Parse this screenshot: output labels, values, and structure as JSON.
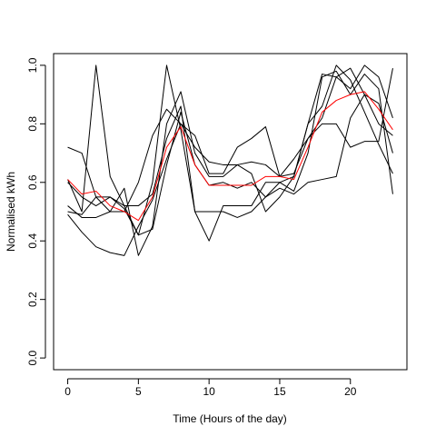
{
  "chart_data": {
    "type": "line",
    "title": "",
    "xlabel": "Time (Hours of the day)",
    "ylabel": "Normalised kWh",
    "xlim": [
      -1,
      24
    ],
    "ylim": [
      -0.04,
      1.04
    ],
    "x_ticks": [
      0,
      5,
      10,
      15,
      20
    ],
    "y_ticks": [
      0.0,
      0.2,
      0.4,
      0.6,
      0.8,
      1.0
    ],
    "x_tick_labels": [
      "0",
      "5",
      "10",
      "15",
      "20"
    ],
    "y_tick_labels": [
      "0.0",
      "0.2",
      "0.4",
      "0.6",
      "0.8",
      "1.0"
    ],
    "grid": false,
    "x": [
      0,
      1,
      2,
      3,
      4,
      5,
      6,
      7,
      8,
      9,
      10,
      11,
      12,
      13,
      14,
      15,
      16,
      17,
      18,
      19,
      20,
      21,
      22,
      23
    ],
    "series": [
      {
        "color": "#000000",
        "values": [
          0.61,
          0.5,
          1.0,
          0.62,
          0.52,
          0.52,
          0.56,
          0.75,
          0.86,
          0.5,
          0.4,
          0.52,
          0.52,
          0.52,
          0.6,
          0.6,
          0.57,
          0.7,
          0.96,
          0.98,
          0.9,
          0.97,
          0.92,
          0.56
        ]
      },
      {
        "color": "#000000",
        "values": [
          0.72,
          0.7,
          0.55,
          0.55,
          0.52,
          0.42,
          0.6,
          1.0,
          0.78,
          0.5,
          0.5,
          0.5,
          0.48,
          0.5,
          0.55,
          0.6,
          0.62,
          0.8,
          0.97,
          0.96,
          0.99,
          0.9,
          0.87,
          0.7
        ]
      },
      {
        "color": "#000000",
        "values": [
          0.5,
          0.49,
          0.55,
          0.5,
          0.58,
          0.35,
          0.45,
          0.8,
          0.91,
          0.7,
          0.62,
          0.62,
          0.66,
          0.63,
          0.5,
          0.55,
          0.62,
          0.8,
          0.86,
          1.0,
          0.95,
          0.84,
          0.73,
          0.63
        ]
      },
      {
        "color": "#000000",
        "values": [
          0.52,
          0.48,
          0.48,
          0.5,
          0.5,
          0.6,
          0.76,
          0.85,
          0.8,
          0.76,
          0.63,
          0.63,
          0.72,
          0.75,
          0.79,
          0.62,
          0.63,
          0.75,
          0.82,
          0.96,
          0.92,
          1.0,
          0.96,
          0.82
        ]
      },
      {
        "color": "#000000",
        "values": [
          0.49,
          0.43,
          0.38,
          0.36,
          0.35,
          0.45,
          0.54,
          0.68,
          0.8,
          0.72,
          0.67,
          0.66,
          0.66,
          0.67,
          0.66,
          0.62,
          0.68,
          0.75,
          0.8,
          0.8,
          0.72,
          0.74,
          0.74,
          0.99
        ]
      },
      {
        "color": "#000000",
        "values": [
          0.6,
          0.55,
          0.52,
          0.55,
          0.51,
          0.42,
          0.44,
          0.66,
          0.84,
          0.66,
          0.59,
          0.6,
          0.58,
          0.6,
          0.55,
          0.58,
          0.56,
          0.6,
          0.61,
          0.62,
          0.82,
          0.9,
          0.8,
          0.76
        ]
      },
      {
        "color": "#ff0000",
        "values": [
          0.61,
          0.56,
          0.57,
          0.52,
          0.5,
          0.47,
          0.55,
          0.72,
          0.79,
          0.66,
          0.59,
          0.59,
          0.59,
          0.59,
          0.62,
          0.62,
          0.61,
          0.72,
          0.84,
          0.88,
          0.9,
          0.91,
          0.85,
          0.78
        ]
      }
    ]
  }
}
